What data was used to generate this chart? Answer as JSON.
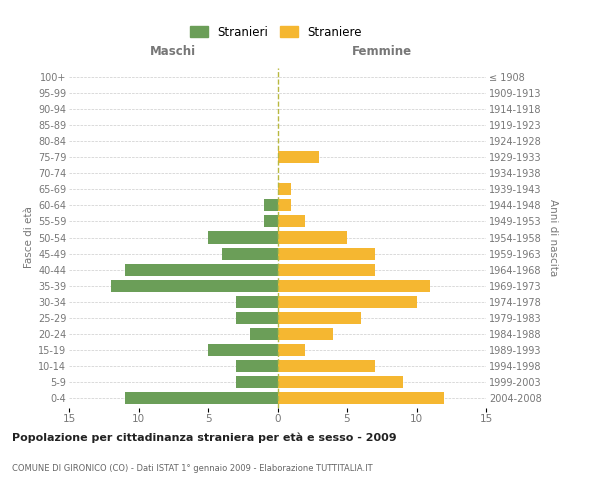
{
  "age_groups": [
    "0-4",
    "5-9",
    "10-14",
    "15-19",
    "20-24",
    "25-29",
    "30-34",
    "35-39",
    "40-44",
    "45-49",
    "50-54",
    "55-59",
    "60-64",
    "65-69",
    "70-74",
    "75-79",
    "80-84",
    "85-89",
    "90-94",
    "95-99",
    "100+"
  ],
  "birth_years": [
    "2004-2008",
    "1999-2003",
    "1994-1998",
    "1989-1993",
    "1984-1988",
    "1979-1983",
    "1974-1978",
    "1969-1973",
    "1964-1968",
    "1959-1963",
    "1954-1958",
    "1949-1953",
    "1944-1948",
    "1939-1943",
    "1934-1938",
    "1929-1933",
    "1924-1928",
    "1919-1923",
    "1914-1918",
    "1909-1913",
    "≤ 1908"
  ],
  "maschi": [
    11,
    3,
    3,
    5,
    2,
    3,
    3,
    12,
    11,
    4,
    5,
    1,
    1,
    0,
    0,
    0,
    0,
    0,
    0,
    0,
    0
  ],
  "femmine": [
    12,
    9,
    7,
    2,
    4,
    6,
    10,
    11,
    7,
    7,
    5,
    2,
    1,
    1,
    0,
    3,
    0,
    0,
    0,
    0,
    0
  ],
  "color_maschi": "#6b9e58",
  "color_femmine": "#f5b731",
  "title": "Popolazione per cittadinanza straniera per età e sesso - 2009",
  "subtitle": "COMUNE DI GIRONICO (CO) - Dati ISTAT 1° gennaio 2009 - Elaborazione TUTTITALIA.IT",
  "xlabel_left": "Maschi",
  "xlabel_right": "Femmine",
  "ylabel_left": "Fasce di età",
  "ylabel_right": "Anni di nascita",
  "legend_maschi": "Stranieri",
  "legend_femmine": "Straniere",
  "xlim": 15,
  "background_color": "#ffffff",
  "grid_color": "#cccccc",
  "dashed_line_color": "#b8b840",
  "label_color": "#777777",
  "title_color": "#222222",
  "subtitle_color": "#666666"
}
